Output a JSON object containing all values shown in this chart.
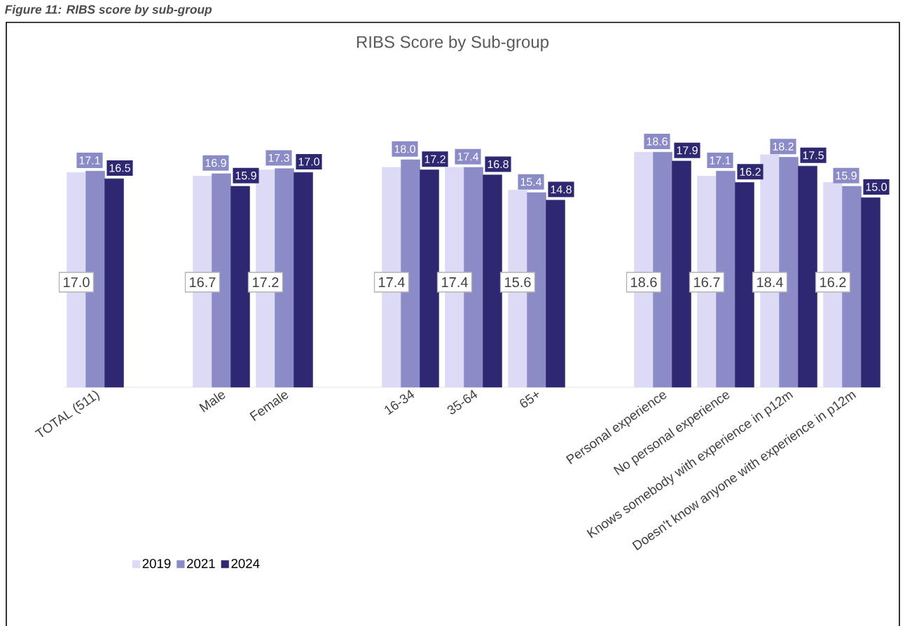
{
  "chart_data": {
    "type": "bar",
    "title": "RIBS Score by Sub-group",
    "annotations": [
      "Figure 11: RIBS score by sub-group"
    ],
    "categories": [
      "TOTAL (511)",
      null,
      "Male",
      "Female",
      null,
      "16-34",
      "35-64",
      "65+",
      null,
      "Personal experience",
      "No personal experience",
      "Knows somebody with experience in p12m",
      "Doesn't know anyone with experience in p12m"
    ],
    "series": [
      {
        "name": "2019",
        "color": "#dcdaf5",
        "values": [
          17.0,
          null,
          16.7,
          17.2,
          null,
          17.4,
          17.4,
          15.6,
          null,
          18.6,
          16.7,
          18.4,
          16.2
        ],
        "value_labels": [
          "17.0",
          null,
          "16.7",
          "17.2",
          null,
          "17.4",
          "17.4",
          "15.6",
          null,
          "18.6",
          "16.7",
          "18.4",
          "16.2"
        ]
      },
      {
        "name": "2021",
        "color": "#8b8bc8",
        "values": [
          17.1,
          null,
          16.9,
          17.3,
          null,
          18.0,
          17.4,
          15.4,
          null,
          18.6,
          17.1,
          18.2,
          15.9
        ],
        "value_labels": [
          "17.1",
          null,
          "16.9",
          "17.3",
          null,
          "18.0",
          "17.4",
          "15.4",
          null,
          "18.6",
          "17.1",
          "18.2",
          "15.9"
        ]
      },
      {
        "name": "2024",
        "color": "#2e2872",
        "values": [
          16.5,
          null,
          15.9,
          17.0,
          null,
          17.2,
          16.8,
          14.8,
          null,
          17.9,
          16.2,
          17.5,
          15.0
        ],
        "value_labels": [
          "16.5",
          null,
          "15.9",
          "17.0",
          null,
          "17.2",
          "16.8",
          "14.8",
          null,
          "17.9",
          "16.2",
          "17.5",
          "15.0"
        ]
      }
    ],
    "ylim": [
      0,
      20
    ],
    "legend": "bottom left",
    "grid": false
  }
}
